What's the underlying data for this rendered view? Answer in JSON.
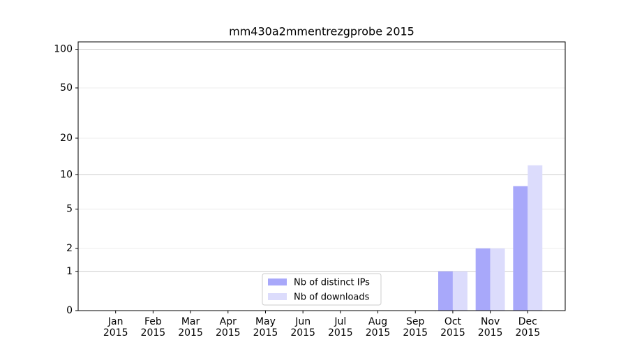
{
  "chart_data": {
    "type": "bar",
    "title": "mm430a2mmentrezgprobe 2015",
    "categories": [
      "Jan\n2015",
      "Feb\n2015",
      "Mar\n2015",
      "Apr\n2015",
      "May\n2015",
      "Jun\n2015",
      "Jul\n2015",
      "Aug\n2015",
      "Sep\n2015",
      "Oct\n2015",
      "Nov\n2015",
      "Dec\n2015"
    ],
    "series": [
      {
        "name": "Nb of distinct IPs",
        "color": "#a8a8fa",
        "values": [
          0,
          0,
          0,
          0,
          0,
          0,
          0,
          0,
          0,
          1,
          2,
          8
        ]
      },
      {
        "name": "Nb of downloads",
        "color": "#dcdcfc",
        "values": [
          0,
          0,
          0,
          0,
          0,
          0,
          0,
          0,
          0,
          1,
          2,
          12
        ]
      }
    ],
    "yscale": "symlog",
    "ylim": [
      0,
      114
    ],
    "yticks": [
      0,
      1,
      2,
      5,
      10,
      20,
      50,
      100
    ],
    "grid": true,
    "legend": "lower center"
  }
}
